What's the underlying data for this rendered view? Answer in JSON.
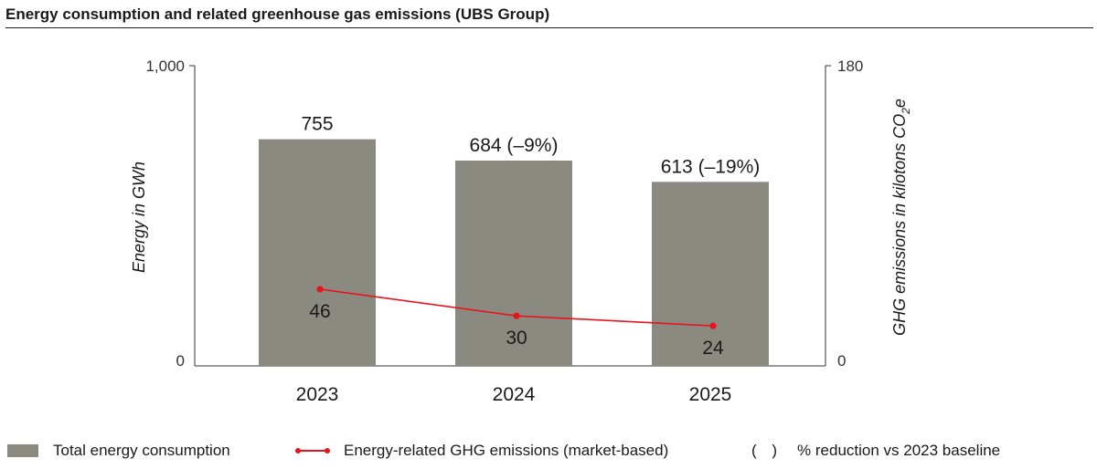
{
  "title": "Energy consumption and related greenhouse gas emissions (UBS Group)",
  "colors": {
    "bar": "#8a8a80",
    "line": "#e8141c",
    "axis": "#333333"
  },
  "chart_data": {
    "type": "bar+line",
    "categories": [
      "2023",
      "2024",
      "2025"
    ],
    "left_axis": {
      "label": "Energy in GWh",
      "ylim": [
        0,
        1000
      ],
      "ticks": [
        "0",
        "1,000"
      ]
    },
    "right_axis": {
      "label_main": "GHG emissions in kilotons CO",
      "label_sub": "2",
      "label_tail": "e",
      "ylim": [
        0,
        180
      ],
      "ticks": [
        "0",
        "180"
      ]
    },
    "series": [
      {
        "name": "Total energy consumption",
        "type": "bar",
        "axis": "left",
        "values": [
          755,
          684,
          613
        ],
        "labels": [
          "755",
          "684 (–9%)",
          "613 (–19%)"
        ]
      },
      {
        "name": "Energy-related GHG emissions (market-based)",
        "type": "line",
        "axis": "right",
        "values": [
          46,
          30,
          24
        ],
        "labels": [
          "46",
          "30",
          "24"
        ]
      }
    ],
    "legend": {
      "bar": "Total energy consumption",
      "line": "Energy-related GHG emissions (market-based)",
      "note_symbol": "( )",
      "note": "% reduction vs 2023 baseline"
    },
    "legend_placement": "bottom",
    "grid": false
  }
}
